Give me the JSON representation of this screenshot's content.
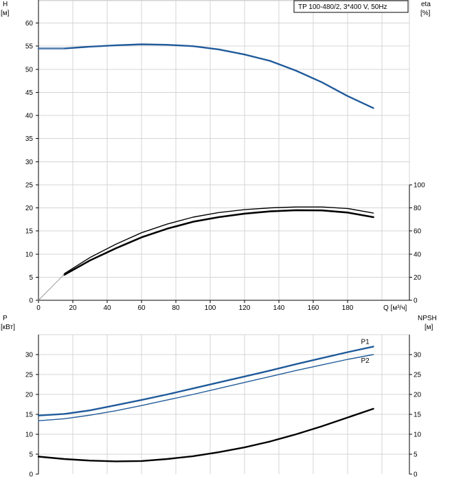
{
  "chart_data": [
    {
      "type": "line",
      "panel": "top",
      "title": "TP 100-480/2, 3*400 V, 50Hz",
      "x_axis": {
        "title": "Q [м³/ч]",
        "range": [
          0,
          200
        ],
        "ticks": [
          0,
          20,
          40,
          60,
          80,
          100,
          120,
          140,
          160,
          180
        ]
      },
      "y_left": {
        "title_line1": "H",
        "title_line2": "[м]",
        "range": [
          0,
          65
        ],
        "ticks": [
          0,
          5,
          10,
          15,
          20,
          25,
          30,
          35,
          40,
          45,
          50,
          55,
          60
        ]
      },
      "y_right": {
        "title_line1": "eta",
        "title_line2": "[%]",
        "range": [
          0,
          100
        ],
        "ticks": [
          0,
          20,
          40,
          60,
          80,
          100
        ]
      },
      "grid": true,
      "series": [
        {
          "axis": "left",
          "color": "#1f5a9a",
          "points": [
            [
              0,
              54.5
            ],
            [
              15,
              54.5
            ],
            [
              30,
              54.9
            ],
            [
              45,
              55.2
            ],
            [
              60,
              55.4
            ],
            [
              75,
              55.3
            ],
            [
              90,
              55.0
            ],
            [
              105,
              54.3
            ],
            [
              120,
              53.2
            ],
            [
              135,
              51.8
            ],
            [
              150,
              49.7
            ],
            [
              165,
              47.2
            ],
            [
              180,
              44.2
            ],
            [
              195,
              41.6
            ]
          ]
        },
        {
          "axis": "right",
          "color": "#000000",
          "points": [
            [
              15,
              23
            ],
            [
              30,
              37
            ],
            [
              45,
              48.5
            ],
            [
              60,
              58.5
            ],
            [
              75,
              66
            ],
            [
              90,
              72
            ],
            [
              105,
              76
            ],
            [
              120,
              78.5
            ],
            [
              135,
              80
            ],
            [
              150,
              80.8
            ],
            [
              165,
              80.8
            ],
            [
              180,
              79.5
            ],
            [
              195,
              75.5
            ]
          ]
        },
        {
          "axis": "right",
          "color": "#000000",
          "points": [
            [
              15,
              22
            ],
            [
              30,
              34.5
            ],
            [
              45,
              45
            ],
            [
              60,
              54.5
            ],
            [
              75,
              62
            ],
            [
              90,
              68
            ],
            [
              105,
              72
            ],
            [
              120,
              75
            ],
            [
              135,
              77
            ],
            [
              150,
              78
            ],
            [
              165,
              77.8
            ],
            [
              180,
              76
            ],
            [
              195,
              72
            ]
          ]
        },
        {
          "axis": "right",
          "color": "#9a9a9a",
          "points": [
            [
              0,
              0
            ],
            [
              15,
              22.5
            ]
          ]
        }
      ]
    },
    {
      "type": "line",
      "panel": "bottom",
      "x_axis": {
        "range": [
          0,
          200
        ]
      },
      "y_left": {
        "title_line1": "P",
        "title_line2": "[кВт]",
        "range": [
          0,
          35
        ],
        "ticks": [
          0,
          5,
          10,
          15,
          20,
          25,
          30
        ]
      },
      "y_right": {
        "title_line1": "NPSH",
        "title_line2": "[м]",
        "range": [
          0,
          35
        ],
        "ticks": [
          0,
          5,
          10,
          15,
          20,
          25,
          30
        ]
      },
      "grid": true,
      "series": [
        {
          "name": "P1",
          "axis": "left",
          "color": "#1f5a9a",
          "points": [
            [
              0,
              14.7
            ],
            [
              15,
              15.1
            ],
            [
              30,
              16.0
            ],
            [
              45,
              17.3
            ],
            [
              60,
              18.6
            ],
            [
              75,
              20.0
            ],
            [
              90,
              21.5
            ],
            [
              105,
              23.0
            ],
            [
              120,
              24.5
            ],
            [
              135,
              26.0
            ],
            [
              150,
              27.6
            ],
            [
              165,
              29.1
            ],
            [
              180,
              30.6
            ],
            [
              195,
              32.0
            ]
          ]
        },
        {
          "name": "P2",
          "axis": "left",
          "color": "#1f5a9a",
          "points": [
            [
              0,
              13.4
            ],
            [
              15,
              13.9
            ],
            [
              30,
              14.8
            ],
            [
              45,
              15.9
            ],
            [
              60,
              17.2
            ],
            [
              75,
              18.6
            ],
            [
              90,
              20.0
            ],
            [
              105,
              21.5
            ],
            [
              120,
              23.0
            ],
            [
              135,
              24.5
            ],
            [
              150,
              26.0
            ],
            [
              165,
              27.4
            ],
            [
              180,
              28.8
            ],
            [
              195,
              30.0
            ]
          ]
        },
        {
          "axis": "right",
          "color": "#000000",
          "points": [
            [
              0,
              4.4
            ],
            [
              15,
              3.8
            ],
            [
              30,
              3.4
            ],
            [
              45,
              3.2
            ],
            [
              60,
              3.3
            ],
            [
              75,
              3.8
            ],
            [
              90,
              4.5
            ],
            [
              105,
              5.5
            ],
            [
              120,
              6.7
            ],
            [
              135,
              8.2
            ],
            [
              150,
              10.0
            ],
            [
              165,
              12.0
            ],
            [
              180,
              14.2
            ],
            [
              195,
              16.4
            ]
          ]
        }
      ]
    }
  ]
}
